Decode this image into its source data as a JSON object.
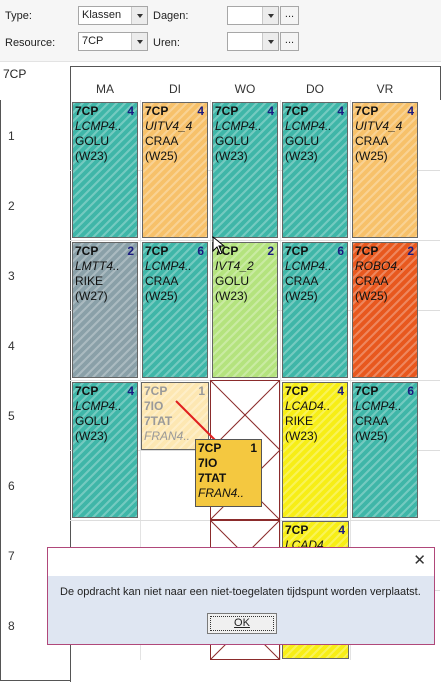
{
  "toolbar": {
    "type_label": "Type:",
    "type_value": "Klassen",
    "resource_label": "Resource:",
    "resource_value": "7CP",
    "dagen_label": "Dagen:",
    "dagen_value": "",
    "uren_label": "Uren:",
    "uren_value": "",
    "ellipsis": "..."
  },
  "schedule": {
    "resource": "7CP",
    "days": [
      "MA",
      "DI",
      "WO",
      "DO",
      "VR"
    ],
    "hours": [
      "1",
      "2",
      "3",
      "4",
      "5",
      "6",
      "7",
      "8"
    ],
    "cells": [
      {
        "day": "MA",
        "cls": "7CP",
        "num": "4",
        "subject": "LCMP4..",
        "teacher": "GOLU",
        "week": "(W23)",
        "color": "#3fb6a8"
      },
      {
        "day": "DI",
        "cls": "7CP",
        "num": "4",
        "subject": "UITV4_4",
        "teacher": "CRAA",
        "week": "(W25)",
        "color": "#f7c16a"
      },
      {
        "day": "WO",
        "cls": "7CP",
        "num": "4",
        "subject": "LCMP4..",
        "teacher": "GOLU",
        "week": "(W23)",
        "color": "#3fb6a8"
      },
      {
        "day": "DO",
        "cls": "7CP",
        "num": "4",
        "subject": "LCMP4..",
        "teacher": "GOLU",
        "week": "(W23)",
        "color": "#3fb6a8"
      },
      {
        "day": "VR",
        "cls": "7CP",
        "num": "4",
        "subject": "UITV4_4",
        "teacher": "CRAA",
        "week": "(W25)",
        "color": "#f7c16a"
      },
      {
        "day": "MA",
        "cls": "7CP",
        "num": "2",
        "subject": "LMTT4..",
        "teacher": "RIKE",
        "week": "(W27)",
        "color": "#8aa0a8"
      },
      {
        "day": "DI",
        "cls": "7CP",
        "num": "6",
        "subject": "LCMP4..",
        "teacher": "CRAA",
        "week": "(W25)",
        "color": "#3fb6a8"
      },
      {
        "day": "WO",
        "cls": "7CP",
        "num": "2",
        "subject": "IVT4_2",
        "teacher": "GOLU",
        "week": "(W23)",
        "color": "#b4e37e"
      },
      {
        "day": "DO",
        "cls": "7CP",
        "num": "6",
        "subject": "LCMP4..",
        "teacher": "CRAA",
        "week": "(W25)",
        "color": "#3fb6a8"
      },
      {
        "day": "VR",
        "cls": "7CP",
        "num": "2",
        "subject": "ROBO4..",
        "teacher": "CRAA",
        "week": "(W25)",
        "color": "#e8581e"
      },
      {
        "day": "MA",
        "cls": "7CP",
        "num": "4",
        "subject": "LCMP4..",
        "teacher": "GOLU",
        "week": "(W23)",
        "color": "#3fb6a8"
      },
      {
        "day": "DO",
        "cls": "7CP",
        "num": "4",
        "subject": "LCAD4..",
        "teacher": "RIKE",
        "week": "(W23)",
        "color": "#f7ee16"
      },
      {
        "day": "VR",
        "cls": "7CP",
        "num": "6",
        "subject": "LCMP4..",
        "teacher": "CRAA",
        "week": "(W25)",
        "color": "#3fb6a8"
      }
    ],
    "ghost": {
      "cls": "7CP",
      "num": "1",
      "line2": "7IO",
      "line3": "7TAT",
      "subject": "FRAN4..",
      "color": "#fde7b2"
    },
    "dragging": {
      "cls": "7CP",
      "num": "1",
      "line2": "7IO",
      "line3": "7TAT",
      "subject": "FRAN4..",
      "color": "#f4c840"
    },
    "lower_do": {
      "cls": "7CP",
      "num": "4",
      "subject": "LCAD4..",
      "color": "#f7ee16"
    }
  },
  "dialog": {
    "message": "De opdracht kan niet naar een niet-toegelaten tijdspunt worden verplaatst.",
    "ok_label": "OK",
    "close_glyph": "✕"
  }
}
